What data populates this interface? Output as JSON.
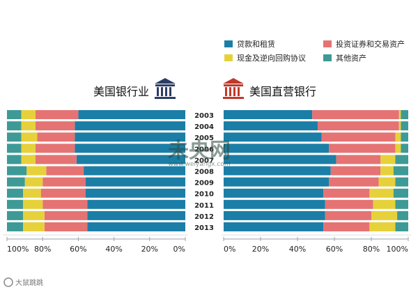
{
  "chart_data": [
    {
      "type": "bar",
      "orientation": "horizontal-stacked-100",
      "title": "美国银行业",
      "x_direction": "reversed",
      "xlim": [
        0,
        100
      ],
      "x_ticks": [
        "100%",
        "80%",
        "60%",
        "40%",
        "20%",
        "0%"
      ],
      "categories": [
        "2003",
        "2004",
        "2005",
        "2006",
        "2007",
        "2008",
        "2009",
        "2010",
        "2011",
        "2012",
        "2013"
      ],
      "series": [
        {
          "name": "贷款和租赁",
          "values": [
            60,
            62,
            62,
            62,
            61,
            57,
            56,
            56,
            55,
            55,
            55
          ]
        },
        {
          "name": "投资证券和交易资产",
          "values": [
            24,
            22,
            21,
            22,
            23,
            21,
            24,
            25,
            25,
            24,
            24
          ]
        },
        {
          "name": "现金及逆向回购协议",
          "values": [
            8,
            8,
            9,
            8,
            8,
            11,
            10,
            10,
            11,
            12,
            12
          ]
        },
        {
          "name": "其他资产",
          "values": [
            8,
            8,
            8,
            8,
            8,
            11,
            10,
            9,
            9,
            9,
            9
          ]
        }
      ]
    },
    {
      "type": "bar",
      "orientation": "horizontal-stacked-100",
      "title": "美国直营银行",
      "xlim": [
        0,
        100
      ],
      "x_ticks": [
        "0%",
        "20%",
        "40%",
        "60%",
        "80%",
        "100%"
      ],
      "categories": [
        "2003",
        "2004",
        "2005",
        "2006",
        "2007",
        "2008",
        "2009",
        "2010",
        "2011",
        "2012",
        "2013"
      ],
      "series": [
        {
          "name": "贷款和租赁",
          "values": [
            48,
            51,
            53,
            57,
            61,
            58,
            57,
            54,
            55,
            55,
            54
          ]
        },
        {
          "name": "投资证券和交易资产",
          "values": [
            47,
            44,
            40,
            36,
            24,
            27,
            27,
            25,
            26,
            25,
            25
          ]
        },
        {
          "name": "现金及逆向回购协议",
          "values": [
            1,
            1,
            3,
            3,
            8,
            7,
            9,
            13,
            12,
            14,
            14
          ]
        },
        {
          "name": "其他资产",
          "values": [
            4,
            4,
            4,
            4,
            7,
            8,
            7,
            8,
            7,
            6,
            7
          ]
        }
      ]
    }
  ],
  "legend": [
    {
      "label": "贷款和租赁",
      "color": "#1b7ea6"
    },
    {
      "label": "投资证券和交易资产",
      "color": "#e57373"
    },
    {
      "label": "现金及逆向回购协议",
      "color": "#e6d13a"
    },
    {
      "label": "其他资产",
      "color": "#3e9a96"
    }
  ],
  "watermark": {
    "main": "未央网",
    "url": "www.weiyangx.com"
  },
  "footer_logo": "大鼠跳跳",
  "icons": {
    "left": "bank-building-icon",
    "right": "bank-building-icon"
  },
  "colors": {
    "left_icon": "#2c3e66",
    "right_icon": "#c0392b",
    "separator": "#9aa2aa"
  }
}
